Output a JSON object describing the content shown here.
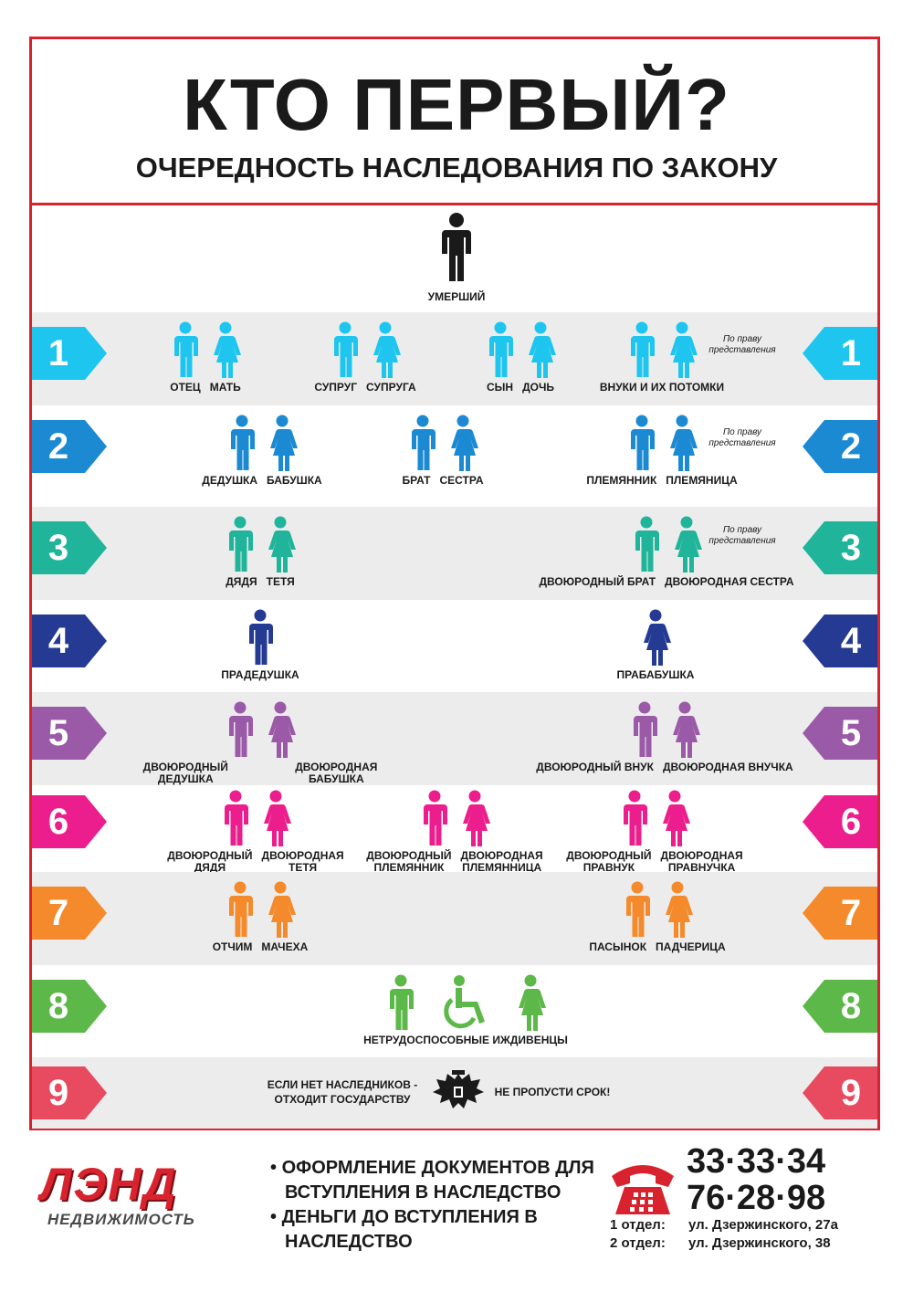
{
  "title": "КТО ПЕРВЫЙ?",
  "subtitle": "ОЧЕРЕДНОСТЬ НАСЛЕДОВАНИЯ ПО ЗАКОНУ",
  "colors": {
    "frame": "#d8232f",
    "deceased": "#1a1a1a",
    "q1": "#1ec6ef",
    "q2": "#1b8ad2",
    "q3": "#20b59a",
    "q4": "#243a93",
    "q5": "#9b5aa7",
    "q6": "#ec1d8c",
    "q7": "#f48a2b",
    "q8": "#5cb848",
    "q9": "#e84a5f"
  },
  "deceased_label": "УМЕРШИЙ",
  "representation_note": "По праву\nпредставления",
  "queues": [
    {
      "num": "1",
      "groups": [
        {
          "labels": [
            "ОТЕЦ",
            "МАТЬ"
          ]
        },
        {
          "labels": [
            "СУПРУГ",
            "СУПРУГА"
          ]
        },
        {
          "labels": [
            "СЫН",
            "ДОЧЬ"
          ]
        },
        {
          "labels": [
            "ВНУКИ И ИХ ПОТОМКИ"
          ]
        }
      ]
    },
    {
      "num": "2",
      "groups": [
        {
          "labels": [
            "ДЕДУШКА",
            "БАБУШКА"
          ]
        },
        {
          "labels": [
            "БРАТ",
            "СЕСТРА"
          ]
        },
        {
          "labels": [
            "ПЛЕМЯННИК",
            "ПЛЕМЯНИЦА"
          ]
        }
      ]
    },
    {
      "num": "3",
      "groups": [
        {
          "labels": [
            "ДЯДЯ",
            "ТЕТЯ"
          ]
        },
        {
          "labels": [
            "ДВОЮРОДНЫЙ БРАТ",
            "ДВОЮРОДНАЯ СЕСТРА"
          ]
        }
      ]
    },
    {
      "num": "4",
      "groups": [
        {
          "labels": [
            "ПРАДЕДУШКА"
          ]
        },
        {
          "labels": [
            "ПРАБАБУШКА"
          ]
        }
      ]
    },
    {
      "num": "5",
      "groups": [
        {
          "labels": [
            "ДВОЮРОДНЫЙ ДЕДУШКА",
            "ДВОЮРОДНАЯ БАБУШКА"
          ]
        },
        {
          "labels": [
            "ДВОЮРОДНЫЙ ВНУК",
            "ДВОЮРОДНАЯ ВНУЧКА"
          ]
        }
      ]
    },
    {
      "num": "6",
      "groups": [
        {
          "labels": [
            "ДВОЮРОДНЫЙ\nДЯДЯ",
            "ДВОЮРОДНАЯ\nТЕТЯ"
          ]
        },
        {
          "labels": [
            "ДВОЮРОДНЫЙ\nПЛЕМЯННИК",
            "ДВОЮРОДНАЯ\nПЛЕМЯННИЦА"
          ]
        },
        {
          "labels": [
            "ДВОЮРОДНЫЙ\nПРАВНУК",
            "ДВОЮРОДНАЯ\nПРАВНУЧКА"
          ]
        }
      ]
    },
    {
      "num": "7",
      "groups": [
        {
          "labels": [
            "ОТЧИМ",
            "МАЧЕХА"
          ]
        },
        {
          "labels": [
            "ПАСЫНОК",
            "ПАДЧЕРИЦА"
          ]
        }
      ]
    },
    {
      "num": "8",
      "groups": [
        {
          "labels": [
            "НЕТРУДОСПОСОБНЫЕ ИЖДИВЕНЦЫ"
          ]
        }
      ]
    },
    {
      "num": "9",
      "state_text": "ЕСЛИ НЕТ НАСЛЕДНИКОВ -\nОТХОДИТ ГОСУДАРСТВУ",
      "deadline": "НЕ ПРОПУСТИ СРОК!"
    }
  ],
  "footer": {
    "brand": "ЛЭНД",
    "brand_sub": "НЕДВИЖИМОСТЬ",
    "services": [
      "ОФОРМЛЕНИЕ ДОКУМЕНТОВ ДЛЯ ВСТУПЛЕНИЯ В НАСЛЕДСТВО",
      "ДЕНЬГИ ДО ВСТУПЛЕНИЯ В НАСЛЕДСТВО"
    ],
    "phones": [
      "33·33·34",
      "76·28·98"
    ],
    "offices": [
      {
        "label": "1 отдел:",
        "address": "ул. Дзержинского, 27а"
      },
      {
        "label": "2 отдел:",
        "address": "ул. Дзержинского, 38"
      }
    ]
  }
}
